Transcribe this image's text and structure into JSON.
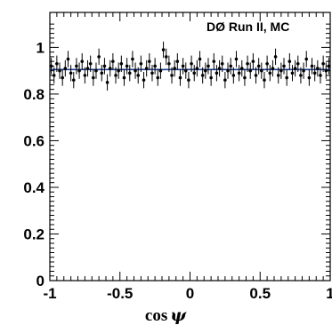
{
  "chart_data": {
    "type": "scatter",
    "annotation": "DØ Run II, MC",
    "xlabel": "cos",
    "xlabel_symbol": "ψ",
    "xlim": [
      -1,
      1
    ],
    "ylim": [
      0,
      1.15
    ],
    "xticks": [
      -1,
      -0.5,
      0,
      0.5,
      1
    ],
    "xtick_labels": [
      "-1",
      "-0.5",
      "0",
      "0.5",
      "1"
    ],
    "yticks": [
      0,
      0.2,
      0.4,
      0.6,
      0.8,
      1
    ],
    "ytick_labels": [
      "0",
      "0.2",
      "0.4",
      "0.6",
      "0.8",
      "1"
    ],
    "fit_line": {
      "y": 0.905,
      "color": "#1f3f8f"
    },
    "marker_color": "#000000",
    "series": [
      {
        "errors": 0.035,
        "x": [
          -0.99,
          -0.97,
          -0.95,
          -0.93,
          -0.91,
          -0.89,
          -0.87,
          -0.85,
          -0.83,
          -0.81,
          -0.79,
          -0.77,
          -0.75,
          -0.73,
          -0.71,
          -0.69,
          -0.67,
          -0.65,
          -0.63,
          -0.61,
          -0.59,
          -0.57,
          -0.55,
          -0.53,
          -0.51,
          -0.49,
          -0.47,
          -0.45,
          -0.43,
          -0.41,
          -0.39,
          -0.37,
          -0.35,
          -0.33,
          -0.31,
          -0.29,
          -0.27,
          -0.25,
          -0.23,
          -0.21,
          -0.19,
          -0.17,
          -0.15,
          -0.13,
          -0.11,
          -0.09,
          -0.07,
          -0.05,
          -0.03,
          -0.01,
          0.01,
          0.03,
          0.05,
          0.07,
          0.09,
          0.11,
          0.13,
          0.15,
          0.17,
          0.19,
          0.21,
          0.23,
          0.25,
          0.27,
          0.29,
          0.31,
          0.33,
          0.35,
          0.37,
          0.39,
          0.41,
          0.43,
          0.45,
          0.47,
          0.49,
          0.51,
          0.53,
          0.55,
          0.57,
          0.59,
          0.61,
          0.63,
          0.65,
          0.67,
          0.69,
          0.71,
          0.73,
          0.75,
          0.77,
          0.79,
          0.81,
          0.83,
          0.85,
          0.87,
          0.89,
          0.91,
          0.93,
          0.95,
          0.97,
          0.99
        ],
        "y": [
          0.92,
          0.88,
          0.93,
          0.9,
          0.87,
          0.91,
          0.95,
          0.89,
          0.86,
          0.92,
          0.9,
          0.94,
          0.88,
          0.91,
          0.93,
          0.87,
          0.9,
          0.96,
          0.89,
          0.92,
          0.85,
          0.91,
          0.94,
          0.88,
          0.9,
          0.93,
          0.87,
          0.92,
          0.89,
          0.95,
          0.9,
          0.88,
          0.93,
          0.86,
          0.91,
          0.94,
          0.89,
          0.92,
          0.87,
          0.9,
          0.99,
          0.96,
          0.93,
          0.88,
          0.91,
          0.94,
          0.87,
          0.92,
          0.9,
          0.86,
          0.93,
          0.89,
          0.91,
          0.95,
          0.88,
          0.9,
          0.92,
          0.87,
          0.94,
          0.89,
          0.91,
          0.93,
          0.86,
          0.9,
          0.92,
          0.88,
          0.95,
          0.89,
          0.91,
          0.87,
          0.93,
          0.9,
          0.94,
          0.88,
          0.92,
          0.9,
          0.86,
          0.93,
          0.89,
          0.91,
          0.96,
          0.88,
          0.9,
          0.92,
          0.87,
          0.94,
          0.89,
          0.91,
          0.93,
          0.88,
          0.9,
          0.95,
          0.87,
          0.92,
          0.89,
          0.91,
          0.88,
          0.93,
          0.9,
          0.92
        ]
      }
    ]
  }
}
